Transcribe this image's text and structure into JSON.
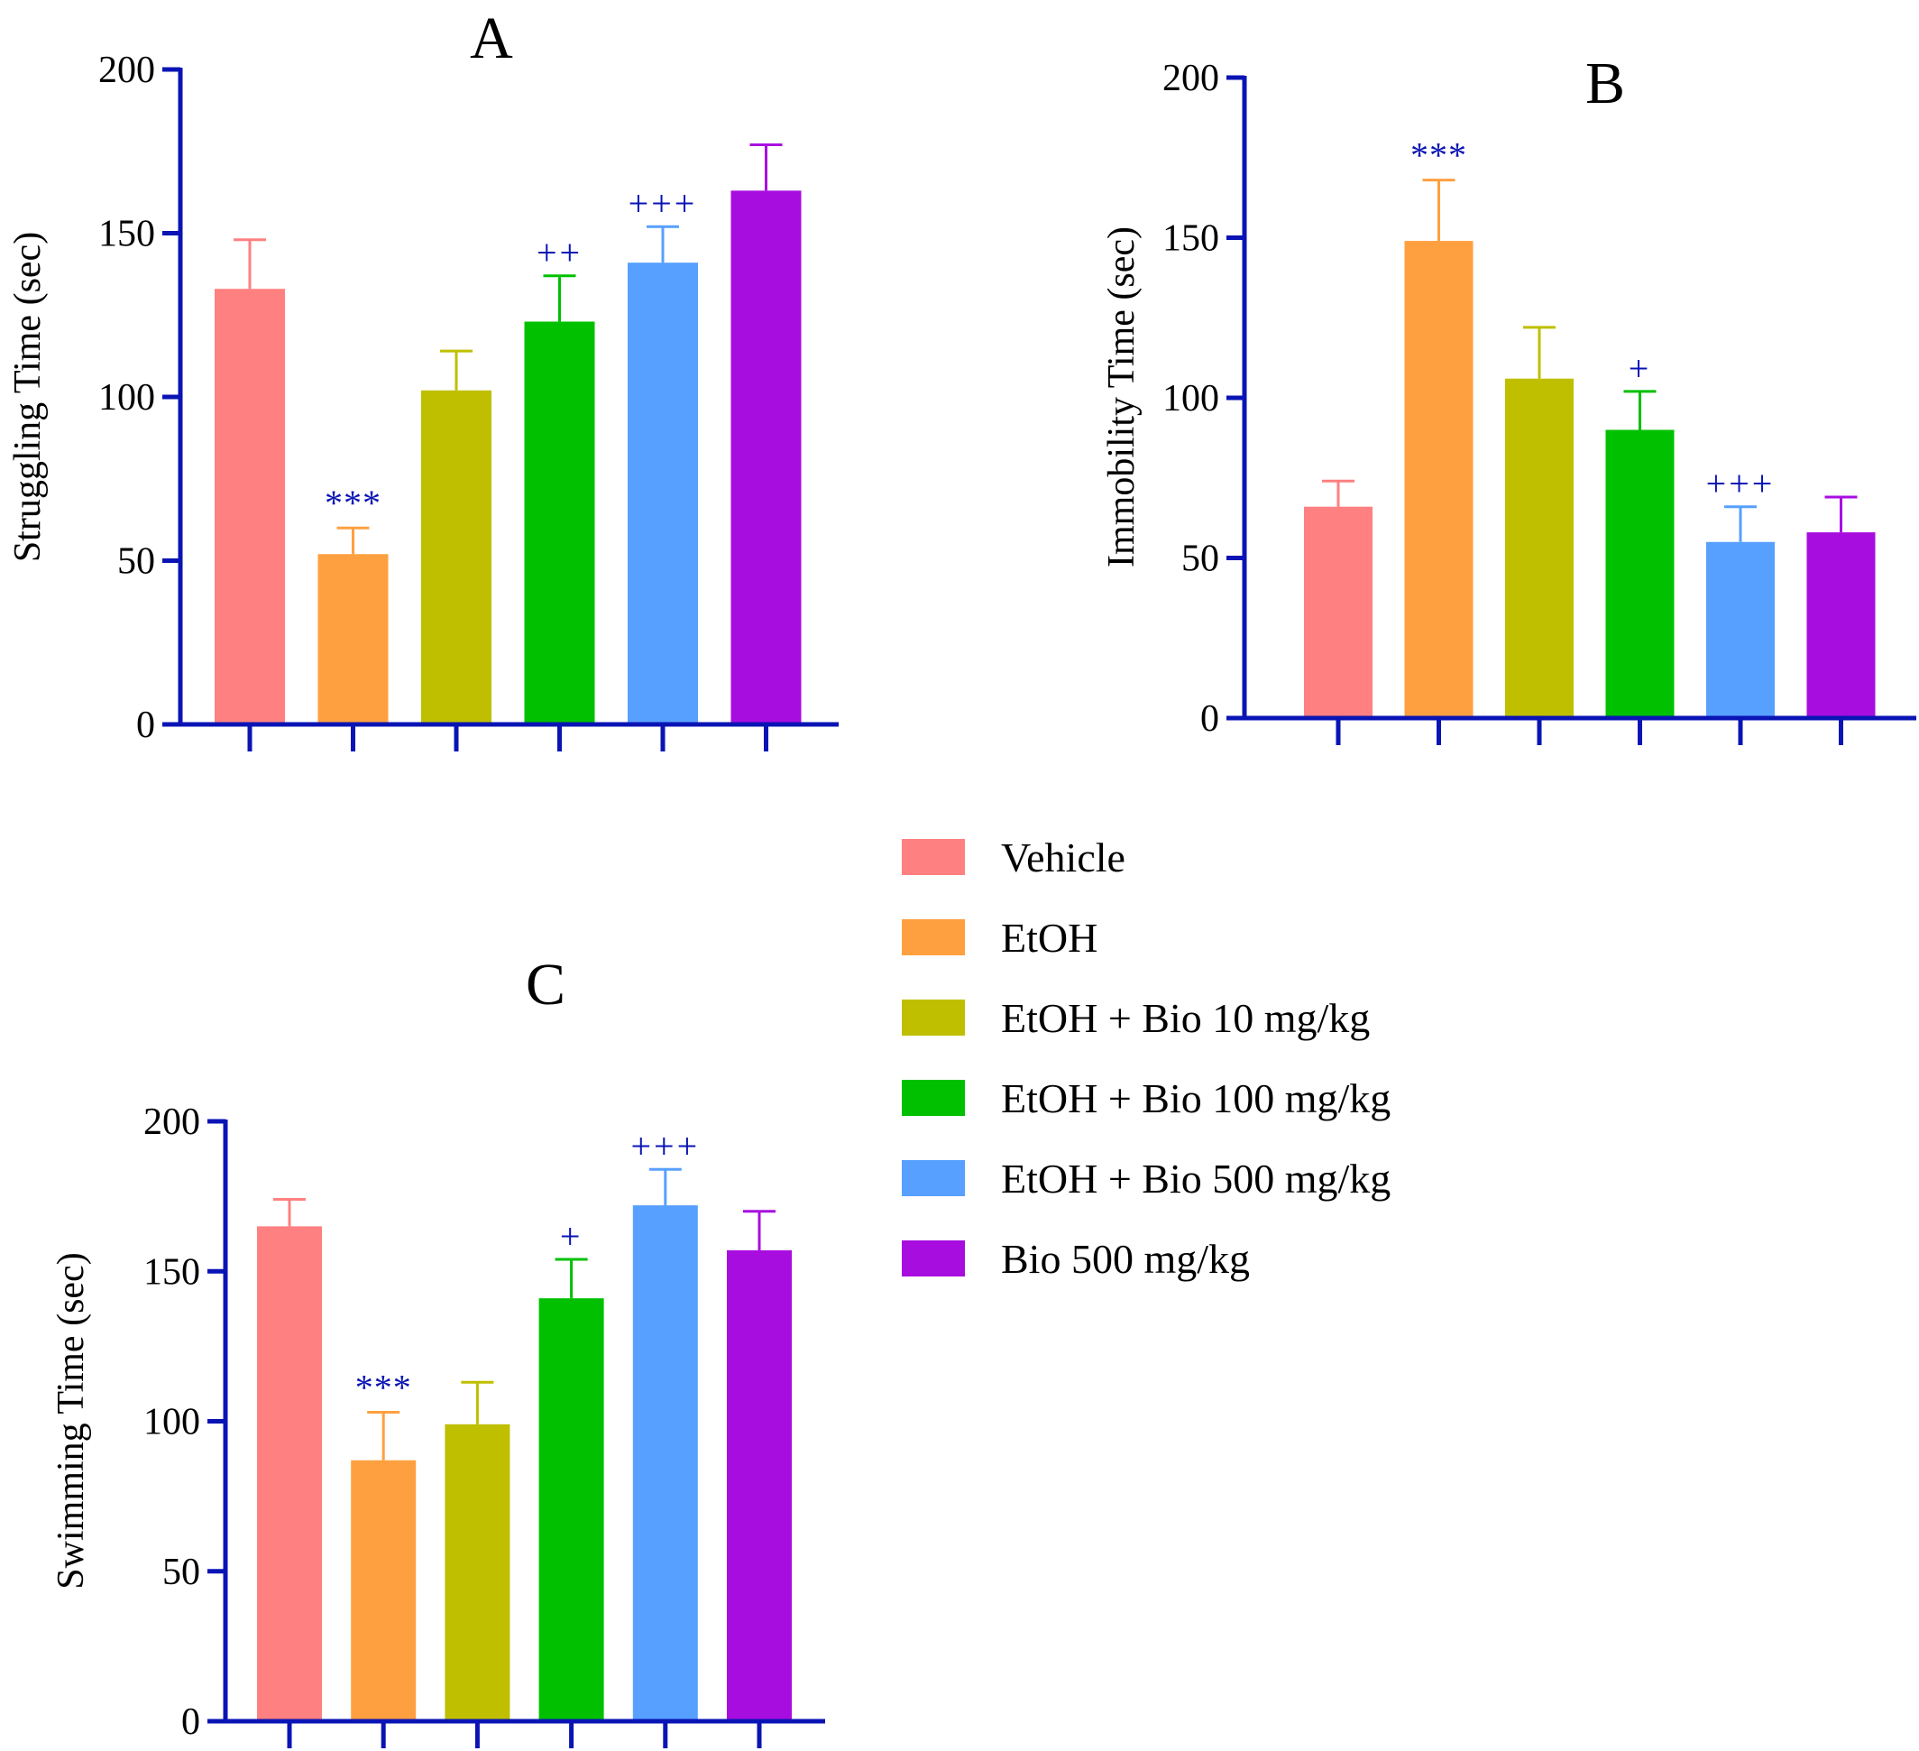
{
  "chart_data": [
    {
      "type": "bar",
      "title": "A",
      "ylabel": "Struggling Time (sec)",
      "ylim": [
        0,
        200
      ],
      "yticks": [
        0,
        50,
        100,
        150,
        200
      ],
      "categories": [
        "Vehicle",
        "EtOH",
        "EtOH + Bio 10 mg/kg",
        "EtOH + Bio 100 mg/kg",
        "EtOH + Bio 500 mg/kg",
        "Bio 500 mg/kg"
      ],
      "values": [
        133,
        52,
        102,
        123,
        141,
        163
      ],
      "errors": [
        15,
        8,
        12,
        14,
        11,
        14
      ],
      "annotations": [
        "",
        "***",
        "",
        "++",
        "+++",
        ""
      ]
    },
    {
      "type": "bar",
      "title": "B",
      "ylabel": "Immobility Time (sec)",
      "ylim": [
        0,
        200
      ],
      "yticks": [
        0,
        50,
        100,
        150,
        200
      ],
      "categories": [
        "Vehicle",
        "EtOH",
        "EtOH + Bio 10 mg/kg",
        "EtOH + Bio 100 mg/kg",
        "EtOH + Bio 500 mg/kg",
        "Bio 500 mg/kg"
      ],
      "values": [
        66,
        149,
        106,
        90,
        55,
        58
      ],
      "errors": [
        8,
        19,
        16,
        12,
        11,
        11
      ],
      "annotations": [
        "",
        "***",
        "",
        "+",
        "+++",
        ""
      ]
    },
    {
      "type": "bar",
      "title": "C",
      "ylabel": "Swimming Time (sec)",
      "ylim": [
        0,
        200
      ],
      "yticks": [
        0,
        50,
        100,
        150,
        200
      ],
      "categories": [
        "Vehicle",
        "EtOH",
        "EtOH + Bio 10 mg/kg",
        "EtOH + Bio 100 mg/kg",
        "EtOH + Bio 500 mg/kg",
        "Bio 500 mg/kg"
      ],
      "values": [
        165,
        87,
        99,
        141,
        172,
        157
      ],
      "errors": [
        9,
        16,
        14,
        13,
        12,
        13
      ],
      "annotations": [
        "",
        "***",
        "",
        "+",
        "+++",
        ""
      ]
    }
  ],
  "legend": {
    "placement": "right of panel C",
    "items": [
      {
        "label": "Vehicle",
        "color": "#FF8080"
      },
      {
        "label": "EtOH",
        "color": "#FFA040"
      },
      {
        "label": "EtOH + Bio 10 mg/kg",
        "color": "#BFBF00"
      },
      {
        "label": "EtOH + Bio 100 mg/kg",
        "color": "#00C000"
      },
      {
        "label": "EtOH + Bio 500 mg/kg",
        "color": "#57A0FF"
      },
      {
        "label": "Bio 500 mg/kg",
        "color": "#A80DE0"
      }
    ]
  },
  "colors": {
    "axis": "#0A14B4",
    "annotation": "#0A14B4"
  }
}
